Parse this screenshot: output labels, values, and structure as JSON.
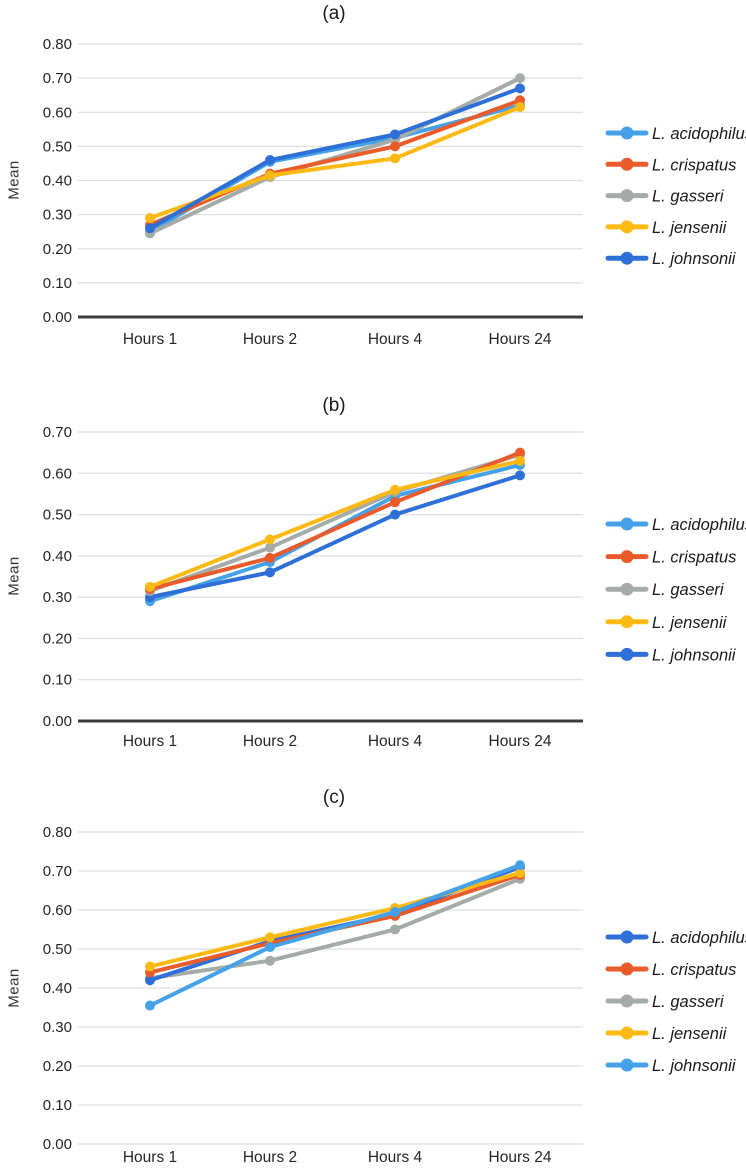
{
  "page": {
    "background": "#ffffff"
  },
  "chart_data": [
    {
      "type": "line",
      "panel_label": "(a)",
      "ylabel": "Mean",
      "categories": [
        "Hours 1",
        "Hours 2",
        "Hours 4",
        "Hours 24"
      ],
      "ylim": [
        0,
        0.8
      ],
      "yticks": [
        "0.00",
        "0.10",
        "0.20",
        "0.30",
        "0.40",
        "0.50",
        "0.60",
        "0.70",
        "0.80"
      ],
      "grid": true,
      "axis_line": "dark",
      "legend_position": "right",
      "series": [
        {
          "name": "L. acidophilus",
          "color": "#45A2E8",
          "values": [
            0.25,
            0.455,
            0.525,
            0.62
          ]
        },
        {
          "name": "L. crispatus",
          "color": "#EA5B2B",
          "values": [
            0.27,
            0.42,
            0.5,
            0.635
          ]
        },
        {
          "name": "L. gasseri",
          "color": "#A5ABA6",
          "values": [
            0.245,
            0.41,
            0.52,
            0.7
          ]
        },
        {
          "name": "L. jensenii",
          "color": "#FFB913",
          "values": [
            0.29,
            0.415,
            0.465,
            0.615
          ]
        },
        {
          "name": "L. johnsonii",
          "color": "#2E6FD8",
          "values": [
            0.26,
            0.46,
            0.535,
            0.67
          ]
        }
      ],
      "draw_order": [
        0,
        2,
        1,
        3,
        4
      ]
    },
    {
      "type": "line",
      "panel_label": "(b)",
      "ylabel": "Mean",
      "categories": [
        "Hours 1",
        "Hours 2",
        "Hours 4",
        "Hours 24"
      ],
      "ylim": [
        0,
        0.7
      ],
      "yticks": [
        "0.00",
        "0.10",
        "0.20",
        "0.30",
        "0.40",
        "0.50",
        "0.60",
        "0.70"
      ],
      "grid": true,
      "axis_line": "dark",
      "legend_position": "right",
      "series": [
        {
          "name": "L. acidophilus",
          "color": "#45A2E8",
          "values": [
            0.29,
            0.385,
            0.545,
            0.62
          ]
        },
        {
          "name": "L. crispatus",
          "color": "#EA5B2B",
          "values": [
            0.32,
            0.395,
            0.53,
            0.65
          ]
        },
        {
          "name": "L. gasseri",
          "color": "#A5ABA6",
          "values": [
            0.315,
            0.42,
            0.555,
            0.645
          ]
        },
        {
          "name": "L. jensenii",
          "color": "#FFB913",
          "values": [
            0.325,
            0.44,
            0.56,
            0.63
          ]
        },
        {
          "name": "L. johnsonii",
          "color": "#2E6FD8",
          "values": [
            0.3,
            0.36,
            0.5,
            0.595
          ]
        }
      ],
      "draw_order": [
        0,
        4,
        2,
        1,
        3
      ]
    },
    {
      "type": "line",
      "panel_label": "(c)",
      "ylabel": "Mean",
      "categories": [
        "Hours 1",
        "Hours 2",
        "Hours 4",
        "Hours 24"
      ],
      "ylim": [
        0,
        0.8
      ],
      "yticks": [
        "0.00",
        "0.10",
        "0.20",
        "0.30",
        "0.40",
        "0.50",
        "0.60",
        "0.70",
        "0.80"
      ],
      "grid": true,
      "axis_line": "light",
      "legend_position": "right",
      "series": [
        {
          "name": "L. acidophilus",
          "color": "#2E6FD8",
          "values": [
            0.42,
            0.52,
            0.59,
            0.71
          ]
        },
        {
          "name": "L. crispatus",
          "color": "#EA5B2B",
          "values": [
            0.44,
            0.515,
            0.585,
            0.69
          ]
        },
        {
          "name": "L. gasseri",
          "color": "#A5ABA6",
          "values": [
            0.425,
            0.47,
            0.55,
            0.68
          ]
        },
        {
          "name": "L. jensenii",
          "color": "#FFB913",
          "values": [
            0.455,
            0.53,
            0.605,
            0.695
          ]
        },
        {
          "name": "L. johnsonii",
          "color": "#45A2E8",
          "values": [
            0.355,
            0.505,
            0.595,
            0.715
          ]
        }
      ],
      "draw_order": [
        2,
        0,
        1,
        3,
        4
      ]
    }
  ],
  "style_colors": {
    "gridline": "#DAE1DF",
    "dark_axis": "#3B3B3B",
    "tick_text": "#262626",
    "legend_text": "#1a1a1a"
  }
}
